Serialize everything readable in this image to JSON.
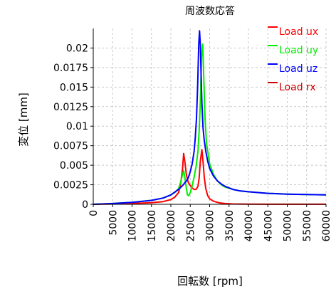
{
  "chart_data": {
    "type": "line",
    "title": "周波数応答",
    "xlabel": "回転数 [rpm]",
    "ylabel": "変位 [mm]",
    "xlim": [
      0,
      60000
    ],
    "ylim": [
      0,
      0.0225
    ],
    "xticks": [
      "0",
      "5000",
      "10000",
      "15000",
      "20000",
      "25000",
      "30000",
      "35000",
      "40000",
      "45000",
      "50000",
      "55000",
      "60000"
    ],
    "yticks": [
      "0",
      "0.0025",
      "0.005",
      "0.0075",
      "0.01",
      "0.0125",
      "0.015",
      "0.0175",
      "0.02"
    ],
    "grid": true,
    "legend_position": "top-right",
    "series": [
      {
        "name": "Load ux",
        "color": "#ff0000",
        "x": [
          0,
          5000,
          10000,
          15000,
          18000,
          20000,
          21000,
          22000,
          22500,
          23000,
          23300,
          23600,
          24000,
          24500,
          25000,
          25500,
          26000,
          26500,
          27000,
          27300,
          27600,
          28000,
          28300,
          28600,
          29000,
          29500,
          30000,
          31000,
          32000,
          33000,
          34000,
          36000,
          40000,
          45000,
          50000,
          55000,
          60000
        ],
        "y": [
          0,
          5e-05,
          0.0001,
          0.0002,
          0.00035,
          0.0006,
          0.0009,
          0.0015,
          0.0025,
          0.0045,
          0.0065,
          0.0055,
          0.0038,
          0.0028,
          0.0024,
          0.0021,
          0.0019,
          0.0019,
          0.0023,
          0.0034,
          0.0055,
          0.007,
          0.0055,
          0.0035,
          0.002,
          0.0011,
          0.0007,
          0.0004,
          0.00025,
          0.00015,
          0.0001,
          5e-05,
          2e-05,
          1e-05,
          1e-05,
          1e-05,
          1e-05
        ]
      },
      {
        "name": "Load uy",
        "color": "#00ee00",
        "x": [
          0,
          5000,
          10000,
          15000,
          18000,
          20000,
          21000,
          22000,
          22500,
          23000,
          23300,
          23600,
          24000,
          24300,
          24600,
          25000,
          25500,
          26000,
          26500,
          27000,
          27300,
          27600,
          27900,
          28200,
          28500,
          28800,
          29200,
          30000,
          31000,
          32000,
          33000,
          34000,
          36000,
          38000,
          40000,
          45000,
          50000,
          55000,
          60000
        ],
        "y": [
          0,
          0.0001,
          0.00025,
          0.0005,
          0.0008,
          0.0012,
          0.0015,
          0.002,
          0.0028,
          0.0038,
          0.0043,
          0.0035,
          0.002,
          0.0012,
          0.0011,
          0.0015,
          0.0024,
          0.0035,
          0.0048,
          0.0068,
          0.0095,
          0.013,
          0.019,
          0.0205,
          0.016,
          0.011,
          0.0078,
          0.0052,
          0.0038,
          0.003,
          0.0025,
          0.0022,
          0.0019,
          0.0017,
          0.0016,
          0.0014,
          0.0013,
          0.00125,
          0.0012
        ]
      },
      {
        "name": "Load uz",
        "color": "#0000ff",
        "x": [
          0,
          5000,
          10000,
          15000,
          18000,
          20000,
          22000,
          23000,
          24000,
          24500,
          25000,
          25500,
          26000,
          26300,
          26600,
          26900,
          27200,
          27400,
          27600,
          27800,
          28000,
          28300,
          28600,
          29000,
          29500,
          30000,
          31000,
          32000,
          33000,
          34000,
          36000,
          38000,
          40000,
          45000,
          50000,
          55000,
          60000
        ],
        "y": [
          0,
          0.0001,
          0.00025,
          0.0005,
          0.0008,
          0.0012,
          0.0019,
          0.0024,
          0.003,
          0.0034,
          0.0042,
          0.0052,
          0.0068,
          0.0085,
          0.011,
          0.015,
          0.0205,
          0.0222,
          0.0205,
          0.0165,
          0.013,
          0.0098,
          0.0082,
          0.0068,
          0.0055,
          0.0046,
          0.0036,
          0.003,
          0.0026,
          0.0023,
          0.0019,
          0.0017,
          0.0016,
          0.0014,
          0.0013,
          0.00125,
          0.0012
        ]
      },
      {
        "name": "Load rx",
        "color": "#cc0000",
        "x": [],
        "y": []
      }
    ]
  }
}
